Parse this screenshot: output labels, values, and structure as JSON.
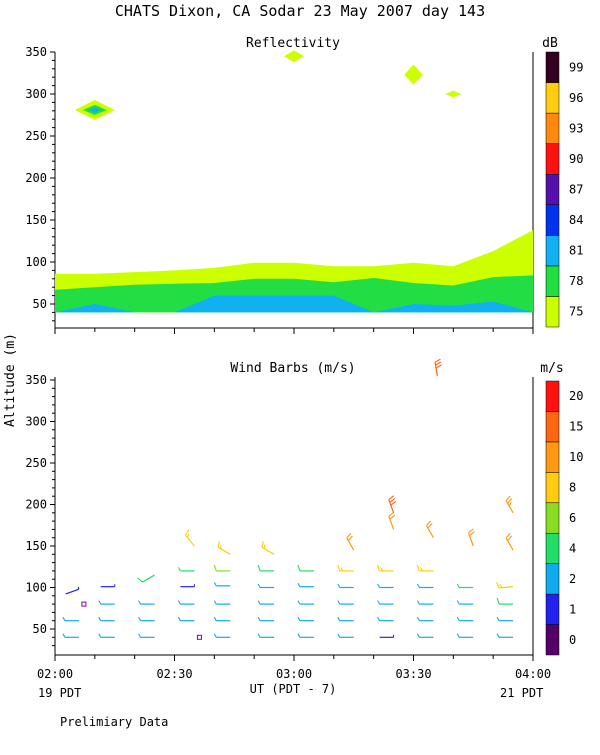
{
  "header": {
    "title": "CHATS Dixon, CA  Sodar  23 May 2007  day 143"
  },
  "footer": {
    "xlabel": "UT  (PDT - 7)",
    "start_label": "19 PDT",
    "end_label": "21 PDT",
    "note": "Prelimiary Data"
  },
  "shared_ylabel": "Altitude (m)",
  "chart_data": [
    {
      "type": "area",
      "title": "Reflectivity",
      "x_ticks": [
        "02:00",
        "02:30",
        "03:00",
        "03:30",
        "04:00"
      ],
      "xlim": [
        "02:00",
        "04:00"
      ],
      "ylim": [
        20,
        355
      ],
      "y_ticks": [
        50,
        100,
        150,
        200,
        250,
        300,
        350
      ],
      "colorbar": {
        "unit": "dB",
        "levels": [
          75,
          78,
          81,
          84,
          87,
          90,
          93,
          96,
          99
        ],
        "colors": [
          "#ccff00",
          "#22dd44",
          "#11b0f0",
          "#0033ee",
          "#5511aa",
          "#ff1111",
          "#ff8811",
          "#ffcc11",
          "#330022"
        ]
      },
      "x_times": [
        "02:00",
        "02:10",
        "02:20",
        "02:30",
        "02:40",
        "02:50",
        "03:00",
        "03:10",
        "03:20",
        "03:30",
        "03:40",
        "03:50",
        "04:00"
      ],
      "series": [
        {
          "level": 75,
          "top": [
            86,
            86,
            88,
            90,
            93,
            99,
            99,
            95,
            95,
            99,
            95,
            113,
            138
          ],
          "bottom": [
            40,
            40,
            40,
            40,
            40,
            40,
            40,
            40,
            40,
            40,
            40,
            40,
            40
          ]
        },
        {
          "level": 78,
          "top": [
            67,
            70,
            73,
            74,
            75,
            80,
            80,
            76,
            81,
            75,
            72,
            82,
            84
          ],
          "bottom": [
            40,
            40,
            40,
            40,
            40,
            40,
            40,
            40,
            40,
            40,
            40,
            40,
            40
          ]
        },
        {
          "level": 81,
          "top": [
            40,
            50,
            40,
            40,
            60,
            60,
            60,
            60,
            40,
            50,
            48,
            53,
            40
          ],
          "bottom": [
            40,
            40,
            40,
            40,
            40,
            40,
            40,
            40,
            40,
            40,
            40,
            40,
            40
          ]
        }
      ],
      "patches": [
        {
          "time": "02:10",
          "altitude": 281,
          "half_width_min": 5,
          "half_height_m": 12,
          "level": 75
        },
        {
          "time": "02:10",
          "altitude": 281,
          "half_width_min": 3,
          "half_height_m": 6,
          "level": 78
        },
        {
          "time": "02:10",
          "altitude": 281,
          "half_width_min": 1.5,
          "half_height_m": 3,
          "level": 81
        },
        {
          "time": "03:00",
          "altitude": 345,
          "half_width_min": 2.5,
          "half_height_m": 7,
          "level": 75
        },
        {
          "time": "03:30",
          "altitude": 323,
          "half_width_min": 2.3,
          "half_height_m": 12,
          "level": 75
        },
        {
          "time": "03:40",
          "altitude": 300,
          "half_width_min": 2,
          "half_height_m": 4,
          "level": 75
        }
      ]
    },
    {
      "type": "scatter",
      "title": "Wind Barbs (m/s)",
      "x_ticks": [
        "02:00",
        "02:30",
        "03:00",
        "03:30",
        "04:00"
      ],
      "xlim": [
        "02:00",
        "04:00"
      ],
      "ylim": [
        20,
        355
      ],
      "y_ticks": [
        50,
        100,
        150,
        200,
        250,
        300,
        350
      ],
      "colorbar": {
        "unit": "m/s",
        "levels": [
          0,
          1,
          2,
          4,
          6,
          8,
          10,
          15,
          20
        ],
        "colors": [
          "#550066",
          "#2222ee",
          "#11aaee",
          "#22dd66",
          "#88dd22",
          "#ffcc11",
          "#ff9911",
          "#ff6611",
          "#ff1111"
        ]
      },
      "barbs_note": "speed in m/s, direction in degrees from which wind blows",
      "barbs": [
        {
          "time": "02:06",
          "altitude": 98,
          "speed": 1.5,
          "dir": 250
        },
        {
          "time": "02:15",
          "altitude": 101,
          "speed": 1.5,
          "dir": 270
        },
        {
          "time": "02:25",
          "altitude": 115,
          "speed": 5,
          "dir": 240
        },
        {
          "time": "02:35",
          "altitude": 101,
          "speed": 1.5,
          "dir": 270
        },
        {
          "time": "02:44",
          "altitude": 102,
          "speed": 2.5,
          "dir": 270
        },
        {
          "time": "02:55",
          "altitude": 100,
          "speed": 3,
          "dir": 270
        },
        {
          "time": "03:05",
          "altitude": 101,
          "speed": 3.5,
          "dir": 270
        },
        {
          "time": "03:15",
          "altitude": 100,
          "speed": 3.5,
          "dir": 270
        },
        {
          "time": "03:25",
          "altitude": 100,
          "speed": 3.5,
          "dir": 270
        },
        {
          "time": "03:35",
          "altitude": 100,
          "speed": 3.5,
          "dir": 270
        },
        {
          "time": "03:45",
          "altitude": 100,
          "speed": 4,
          "dir": 270
        },
        {
          "time": "03:55",
          "altitude": 101,
          "speed": 9,
          "dir": 265
        },
        {
          "time": "02:35",
          "altitude": 120,
          "speed": 4.5,
          "dir": 270
        },
        {
          "time": "02:44",
          "altitude": 120,
          "speed": 6,
          "dir": 270
        },
        {
          "time": "02:55",
          "altitude": 120,
          "speed": 5,
          "dir": 270
        },
        {
          "time": "03:05",
          "altitude": 120,
          "speed": 5,
          "dir": 270
        },
        {
          "time": "03:15",
          "altitude": 120,
          "speed": 8,
          "dir": 270
        },
        {
          "time": "03:25",
          "altitude": 120,
          "speed": 9,
          "dir": 270
        },
        {
          "time": "03:35",
          "altitude": 120,
          "speed": 9,
          "dir": 270
        },
        {
          "time": "02:35",
          "altitude": 150,
          "speed": 9,
          "dir": 320
        },
        {
          "time": "02:44",
          "altitude": 140,
          "speed": 9,
          "dir": 300
        },
        {
          "time": "02:55",
          "altitude": 140,
          "speed": 9,
          "dir": 300
        },
        {
          "time": "03:15",
          "altitude": 145,
          "speed": 10,
          "dir": 330
        },
        {
          "time": "03:25",
          "altitude": 170,
          "speed": 12,
          "dir": 340
        },
        {
          "time": "03:35",
          "altitude": 160,
          "speed": 12,
          "dir": 330
        },
        {
          "time": "03:45",
          "altitude": 150,
          "speed": 10,
          "dir": 340
        },
        {
          "time": "03:55",
          "altitude": 145,
          "speed": 12,
          "dir": 330
        },
        {
          "time": "03:55",
          "altitude": 190,
          "speed": 14,
          "dir": 330
        },
        {
          "time": "03:25",
          "altitude": 190,
          "speed": 16,
          "dir": 340
        },
        {
          "time": "03:36",
          "altitude": 355,
          "speed": 17,
          "dir": 350
        }
      ],
      "rows": [
        {
          "altitude": 80,
          "times": [
            "02:06",
            "02:15",
            "02:25",
            "02:35",
            "02:44",
            "02:55",
            "03:05",
            "03:15",
            "03:25",
            "03:35",
            "03:45",
            "03:55"
          ],
          "speeds": [
            0.5,
            3.5,
            3.5,
            3.5,
            3.5,
            3.5,
            3.5,
            3.5,
            3.5,
            3.5,
            3.5,
            5
          ],
          "markers": [
            true,
            false,
            false,
            false,
            false,
            false,
            false,
            false,
            false,
            false,
            false,
            false
          ]
        },
        {
          "altitude": 60,
          "times": [
            "02:06",
            "02:15",
            "02:25",
            "02:35",
            "02:44",
            "02:55",
            "03:05",
            "03:15",
            "03:25",
            "03:35",
            "03:45",
            "03:55"
          ],
          "speeds": [
            2.5,
            2.5,
            2.5,
            3,
            3,
            3,
            3,
            3,
            3,
            3,
            3,
            3.5
          ],
          "markers": [
            false,
            false,
            false,
            false,
            false,
            false,
            false,
            false,
            false,
            false,
            false,
            false
          ]
        },
        {
          "altitude": 40,
          "times": [
            "02:06",
            "02:15",
            "02:25",
            "02:35",
            "02:44",
            "02:55",
            "03:05",
            "03:15",
            "03:25",
            "03:35",
            "03:45",
            "03:55"
          ],
          "speeds": [
            2.5,
            2.5,
            2.5,
            0.5,
            2.5,
            2.5,
            2.5,
            2.5,
            1.5,
            2.5,
            3,
            3
          ],
          "markers": [
            false,
            false,
            false,
            true,
            false,
            false,
            false,
            false,
            false,
            false,
            false,
            false
          ]
        }
      ]
    }
  ]
}
